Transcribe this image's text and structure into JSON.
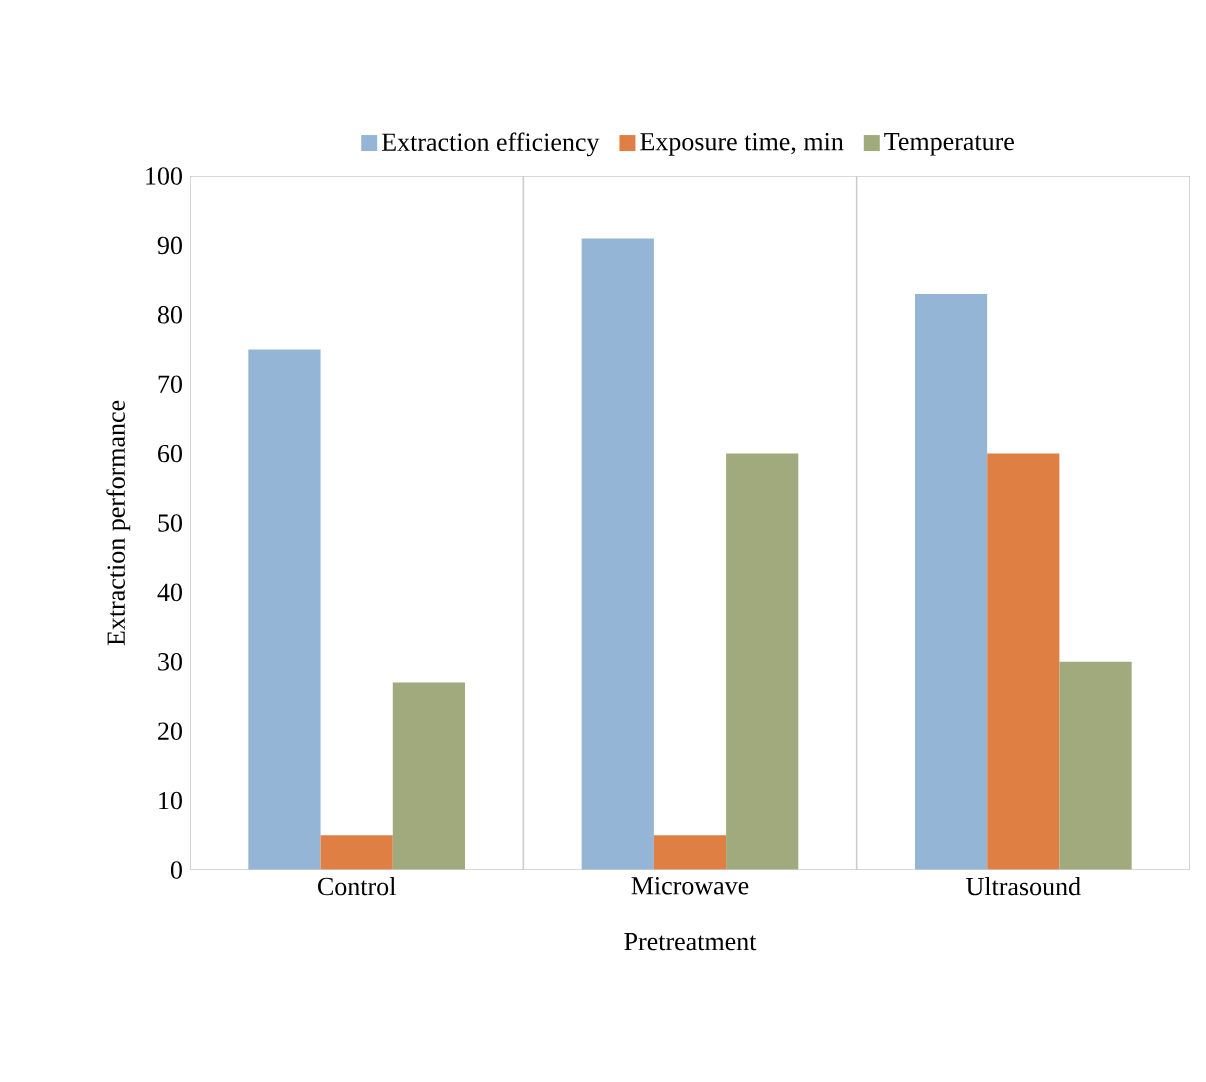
{
  "chart_data": {
    "type": "bar",
    "xlabel": "Pretreatment",
    "ylabel": "Extraction performance",
    "categories": [
      "Control",
      "Microwave",
      "Ultrasound"
    ],
    "series": [
      {
        "name": "Extraction efficiency",
        "color": "#94b5d6",
        "values": [
          75,
          91,
          83
        ]
      },
      {
        "name": "Exposure time, min",
        "color": "#e07f44",
        "values": [
          5,
          5,
          60
        ]
      },
      {
        "name": "Temperature",
        "color": "#a1aa7c",
        "values": [
          27,
          60,
          30
        ]
      }
    ],
    "ylim": [
      0,
      100
    ],
    "yticks": [
      0,
      10,
      20,
      30,
      40,
      50,
      60,
      70,
      80,
      90,
      100
    ],
    "grid": "x",
    "legend": "top"
  }
}
